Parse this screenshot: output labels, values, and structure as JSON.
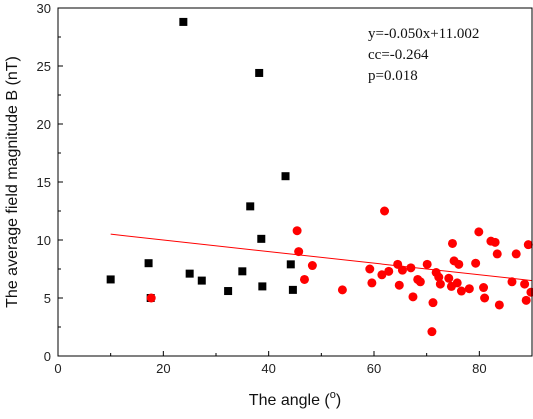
{
  "chart_data": {
    "type": "scatter",
    "xlabel_text": "The angle (",
    "xlabel_unit": "o",
    "xlabel_close": ")",
    "ylabel": "The average field magnitude B (nT)",
    "xlim": [
      0,
      90
    ],
    "ylim": [
      0,
      30
    ],
    "xticks": [
      0,
      20,
      40,
      60,
      80
    ],
    "yticks": [
      0,
      5,
      10,
      15,
      20,
      25,
      30
    ],
    "grid": false,
    "annotations": [
      "y=-0.050x+11.002",
      "cc=-0.264",
      "p=0.018"
    ],
    "fit_line": {
      "slope": -0.05,
      "intercept": 11.002,
      "x_range": [
        10,
        90
      ],
      "color": "#ff0000"
    },
    "series": [
      {
        "marker": "square",
        "color": "#000000",
        "points": [
          [
            10,
            6.6
          ],
          [
            17.2,
            8.0
          ],
          [
            17.6,
            5.0
          ],
          [
            23.8,
            28.8
          ],
          [
            25,
            7.1
          ],
          [
            27.3,
            6.5
          ],
          [
            32.3,
            5.6
          ],
          [
            35,
            7.3
          ],
          [
            36.5,
            12.9
          ],
          [
            38.2,
            24.4
          ],
          [
            38.6,
            10.1
          ],
          [
            38.8,
            6.0
          ],
          [
            43.2,
            15.5
          ],
          [
            44.2,
            7.9
          ],
          [
            44.6,
            5.7
          ]
        ]
      },
      {
        "marker": "circle",
        "color": "#ff0000",
        "points": [
          [
            17.7,
            5.0
          ],
          [
            45.4,
            10.8
          ],
          [
            45.7,
            9.0
          ],
          [
            46.8,
            6.6
          ],
          [
            48.3,
            7.8
          ],
          [
            54,
            5.7
          ],
          [
            59.2,
            7.5
          ],
          [
            59.6,
            6.3
          ],
          [
            61.5,
            7.0
          ],
          [
            62,
            12.5
          ],
          [
            62.8,
            7.3
          ],
          [
            64.5,
            7.9
          ],
          [
            64.8,
            6.1
          ],
          [
            65.4,
            7.4
          ],
          [
            67,
            7.6
          ],
          [
            67.4,
            5.1
          ],
          [
            68.3,
            6.6
          ],
          [
            68.8,
            6.4
          ],
          [
            70.1,
            7.9
          ],
          [
            71,
            2.1
          ],
          [
            71.2,
            4.6
          ],
          [
            71.8,
            7.2
          ],
          [
            72.3,
            6.8
          ],
          [
            72.6,
            6.2
          ],
          [
            74.2,
            6.7
          ],
          [
            74.7,
            6.0
          ],
          [
            74.9,
            9.7
          ],
          [
            75.2,
            8.2
          ],
          [
            75.8,
            6.3
          ],
          [
            76.1,
            7.9
          ],
          [
            76.6,
            5.6
          ],
          [
            78.1,
            5.8
          ],
          [
            79.3,
            8.0
          ],
          [
            79.9,
            10.7
          ],
          [
            80.8,
            5.9
          ],
          [
            81,
            5.0
          ],
          [
            82.2,
            9.9
          ],
          [
            83,
            9.8
          ],
          [
            83.4,
            8.8
          ],
          [
            83.8,
            4.4
          ],
          [
            86.2,
            6.4
          ],
          [
            87,
            8.8
          ],
          [
            88.6,
            6.2
          ],
          [
            88.9,
            4.8
          ],
          [
            89.3,
            9.6
          ],
          [
            89.8,
            5.5
          ]
        ]
      }
    ]
  }
}
